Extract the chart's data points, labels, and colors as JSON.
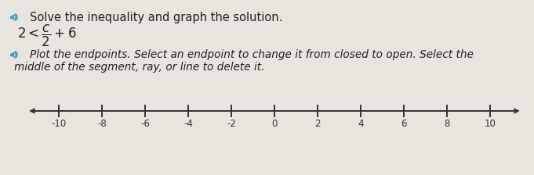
{
  "bg_color": "#e8e4de",
  "title_text": "Solve the inequality and graph the solution.",
  "math_text": "$2 < \\dfrac{c}{2} + 6$",
  "instruction_line1": "Plot the endpoints. Select an endpoint to change it from closed to open. Select the",
  "instruction_line2": "middle of the segment, ray, or line to delete it.",
  "number_line": {
    "ticks": [
      -10,
      -8,
      -6,
      -4,
      -2,
      0,
      2,
      4,
      6,
      8,
      10
    ],
    "tick_labels": [
      "-10",
      "-8",
      "-6",
      "-4",
      "-2",
      "0",
      "2",
      "4",
      "6",
      "8",
      "10"
    ],
    "line_color": "#333333",
    "label_color": "#333333"
  },
  "speaker_color": "#4a9cc7",
  "text_color": "#222222",
  "title_fontsize": 10.5,
  "instruction_fontsize": 9.8,
  "math_fontsize": 12,
  "tick_label_fontsize": 8.5
}
